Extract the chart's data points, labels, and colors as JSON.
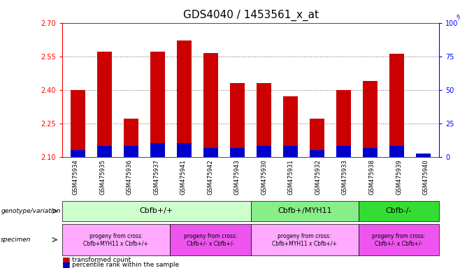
{
  "title": "GDS4040 / 1453561_x_at",
  "samples": [
    "GSM475934",
    "GSM475935",
    "GSM475936",
    "GSM475937",
    "GSM475941",
    "GSM475942",
    "GSM475943",
    "GSM475930",
    "GSM475931",
    "GSM475932",
    "GSM475933",
    "GSM475938",
    "GSM475939",
    "GSM475940"
  ],
  "red_values": [
    2.4,
    2.57,
    2.27,
    2.57,
    2.62,
    2.565,
    2.43,
    2.43,
    2.37,
    2.27,
    2.4,
    2.44,
    2.56,
    2.11
  ],
  "blue_values": [
    0.03,
    0.05,
    0.05,
    0.06,
    0.06,
    0.04,
    0.04,
    0.05,
    0.05,
    0.03,
    0.05,
    0.04,
    0.05,
    0.015
  ],
  "y_min": 2.1,
  "y_max": 2.7,
  "y_ticks_left": [
    2.1,
    2.25,
    2.4,
    2.55,
    2.7
  ],
  "y_ticks_right": [
    0,
    25,
    50,
    75,
    100
  ],
  "genotype_groups": [
    {
      "label": "Cbfb+/+",
      "start": 0,
      "end": 7,
      "color": "#ccffcc"
    },
    {
      "label": "Cbfb+/MYH11",
      "start": 7,
      "end": 11,
      "color": "#88ee88"
    },
    {
      "label": "Cbfb-/-",
      "start": 11,
      "end": 14,
      "color": "#33dd33"
    }
  ],
  "specimen_groups": [
    {
      "label": "progeny from cross:\nCbfb+MYH11 x Cbfb+/+",
      "start": 0,
      "end": 4,
      "color": "#ffaaff"
    },
    {
      "label": "progeny from cross:\nCbfb+/- x Cbfb+/-",
      "start": 4,
      "end": 7,
      "color": "#ee55ee"
    },
    {
      "label": "progeny from cross:\nCbfb+MYH11 x Cbfb+/+",
      "start": 7,
      "end": 11,
      "color": "#ffaaff"
    },
    {
      "label": "progeny from cross:\nCbfb+/- x Cbfb+/-",
      "start": 11,
      "end": 14,
      "color": "#ee55ee"
    }
  ],
  "bar_color_red": "#cc0000",
  "bar_color_blue": "#0000cc",
  "bar_width": 0.55,
  "grid_dotted_ticks": [
    2.25,
    2.4,
    2.55
  ],
  "title_fontsize": 11,
  "tick_fontsize": 7,
  "label_fontsize": 7
}
